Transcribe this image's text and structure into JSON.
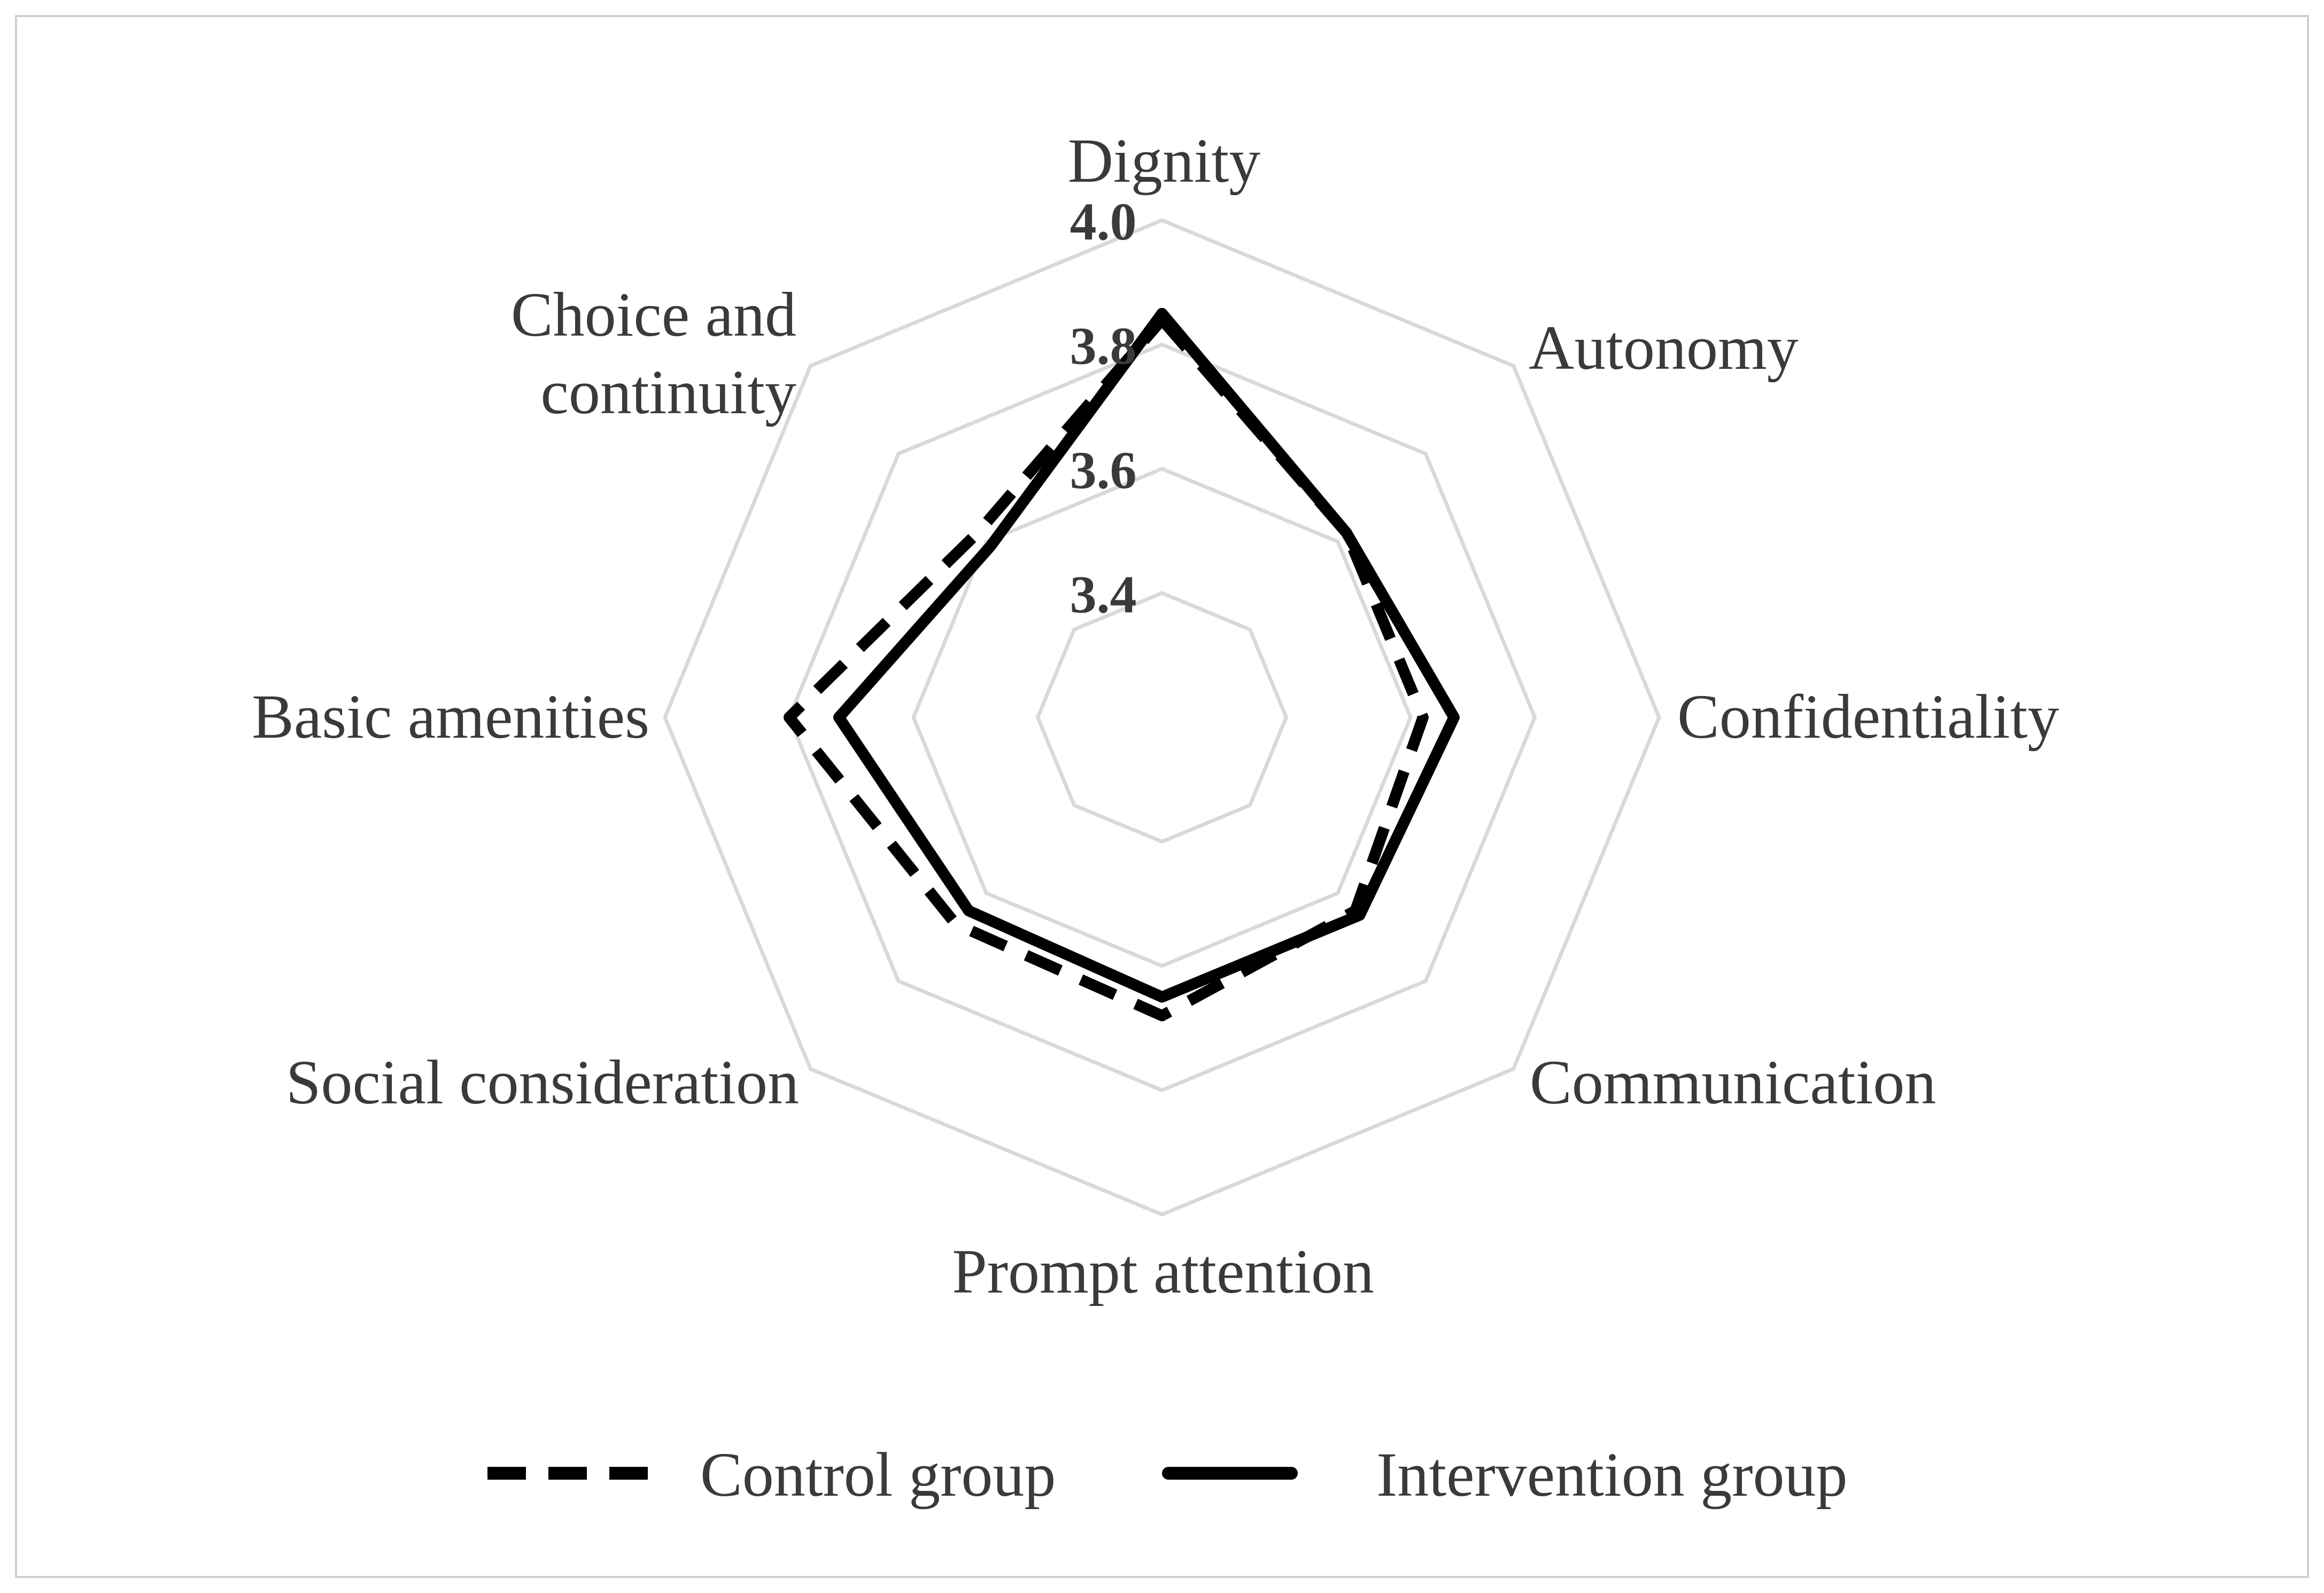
{
  "chart_data": {
    "type": "radar",
    "axes": [
      "Dignity",
      "Autonomy",
      "Confidentiality",
      "Communication",
      "Prompt attention",
      "Social consideration",
      "Basic amenities",
      "Choice and continuity"
    ],
    "axis_label_lines": [
      [
        "Dignity"
      ],
      [
        "Autonomy"
      ],
      [
        "Confidentiality"
      ],
      [
        "Communication"
      ],
      [
        "Prompt attention"
      ],
      [
        "Social consideration"
      ],
      [
        "Basic amenities"
      ],
      [
        "Choice and",
        "continuity"
      ]
    ],
    "rlim": [
      3.2,
      4.0
    ],
    "ticks": [
      3.4,
      3.6,
      3.8,
      4.0
    ],
    "tick_labels": [
      "3.4",
      "3.6",
      "3.8",
      "4.0"
    ],
    "grid": true,
    "legend_position": "bottom",
    "series": [
      {
        "name": "Control group",
        "style": "dashed",
        "color": "#000000",
        "values": [
          3.84,
          3.62,
          3.62,
          3.64,
          3.68,
          3.67,
          3.8,
          3.62
        ]
      },
      {
        "name": "Intervention group",
        "style": "solid",
        "color": "#000000",
        "values": [
          3.85,
          3.62,
          3.67,
          3.65,
          3.65,
          3.64,
          3.72,
          3.59
        ]
      }
    ]
  }
}
